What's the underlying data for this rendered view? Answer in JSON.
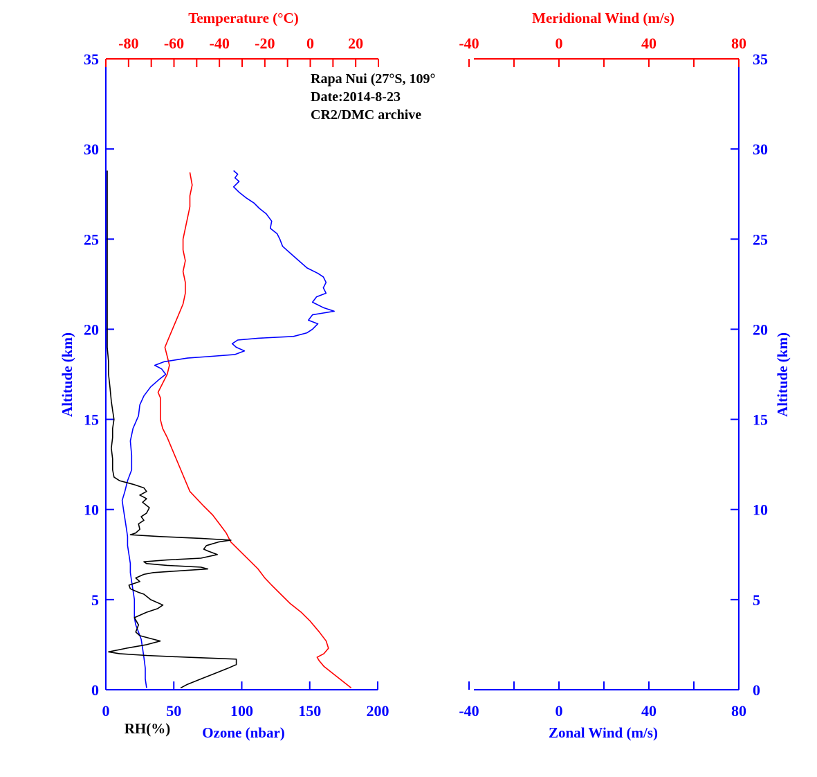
{
  "colors": {
    "blue": "#0000ff",
    "red": "#ff0000",
    "black": "#000000"
  },
  "annotation": [
    "Rapa Nui (27°S, 109°",
    "Date:2014-8-23",
    "CR2/DMC archive"
  ],
  "chart_data": [
    {
      "type": "line",
      "panel": "left",
      "ylabel": "Altitude (km)",
      "ylim": [
        0,
        35
      ],
      "yticks": [
        0,
        5,
        10,
        15,
        20,
        25,
        30,
        35
      ],
      "bottom_axis": {
        "xlabel": "Ozone (nbar)",
        "extra_label": "RH(%)",
        "xlim": [
          0,
          200
        ],
        "xticks": [
          0,
          50,
          100,
          150,
          200
        ]
      },
      "top_axis": {
        "xlabel": "Temperature (°C)",
        "xlim": [
          -90,
          30
        ],
        "xticks": [
          -80,
          -60,
          -40,
          -20,
          0,
          20
        ]
      },
      "series": [
        {
          "name": "Temperature (°C)",
          "axis": "top",
          "color": "#ff0000",
          "points": [
            [
              18,
              0.1
            ],
            [
              14,
              0.5
            ],
            [
              10,
              0.9
            ],
            [
              6,
              1.3
            ],
            [
              4,
              1.6
            ],
            [
              3,
              1.8
            ],
            [
              6,
              2.0
            ],
            [
              8,
              2.3
            ],
            [
              7,
              2.7
            ],
            [
              4,
              3.2
            ],
            [
              0,
              3.8
            ],
            [
              -4,
              4.3
            ],
            [
              -9,
              4.8
            ],
            [
              -13,
              5.3
            ],
            [
              -17,
              5.8
            ],
            [
              -20,
              6.2
            ],
            [
              -23,
              6.7
            ],
            [
              -27,
              7.2
            ],
            [
              -31,
              7.7
            ],
            [
              -35,
              8.2
            ],
            [
              -37,
              8.7
            ],
            [
              -40,
              9.2
            ],
            [
              -43,
              9.7
            ],
            [
              -47,
              10.2
            ],
            [
              -50,
              10.6
            ],
            [
              -53,
              11.0
            ],
            [
              -55,
              11.6
            ],
            [
              -57,
              12.2
            ],
            [
              -59,
              12.8
            ],
            [
              -61,
              13.4
            ],
            [
              -63,
              14.0
            ],
            [
              -65,
              14.5
            ],
            [
              -66,
              15.0
            ],
            [
              -66,
              15.6
            ],
            [
              -66,
              16.2
            ],
            [
              -67,
              16.5
            ],
            [
              -65,
              17.0
            ],
            [
              -63,
              17.5
            ],
            [
              -62,
              18.0
            ],
            [
              -63,
              18.5
            ],
            [
              -64,
              19.0
            ],
            [
              -62,
              19.6
            ],
            [
              -60,
              20.2
            ],
            [
              -58,
              20.8
            ],
            [
              -56,
              21.4
            ],
            [
              -55,
              22.0
            ],
            [
              -55,
              22.6
            ],
            [
              -56,
              23.2
            ],
            [
              -55,
              23.8
            ],
            [
              -56,
              24.4
            ],
            [
              -56,
              25.0
            ],
            [
              -55,
              25.6
            ],
            [
              -54,
              26.2
            ],
            [
              -53,
              26.8
            ],
            [
              -53,
              27.4
            ],
            [
              -52,
              28.0
            ],
            [
              -53,
              28.7
            ]
          ]
        },
        {
          "name": "Ozone (nbar)",
          "axis": "bottom",
          "color": "#0000ff",
          "points": [
            [
              30,
              0.1
            ],
            [
              29,
              0.6
            ],
            [
              29,
              1.2
            ],
            [
              28,
              1.8
            ],
            [
              27,
              2.3
            ],
            [
              26,
              2.8
            ],
            [
              24,
              3.2
            ],
            [
              22,
              3.6
            ],
            [
              21,
              4.0
            ],
            [
              21,
              4.5
            ],
            [
              21,
              5.0
            ],
            [
              20,
              5.5
            ],
            [
              19,
              6.0
            ],
            [
              18,
              6.5
            ],
            [
              18,
              7.0
            ],
            [
              17,
              7.5
            ],
            [
              16,
              8.0
            ],
            [
              16,
              8.5
            ],
            [
              15,
              9.0
            ],
            [
              14,
              9.5
            ],
            [
              13,
              10.0
            ],
            [
              12,
              10.5
            ],
            [
              14,
              11.0
            ],
            [
              16,
              11.6
            ],
            [
              19,
              12.2
            ],
            [
              19,
              13.0
            ],
            [
              18,
              13.8
            ],
            [
              20,
              14.5
            ],
            [
              24,
              15.2
            ],
            [
              25,
              15.8
            ],
            [
              28,
              16.3
            ],
            [
              33,
              16.8
            ],
            [
              39,
              17.2
            ],
            [
              44,
              17.5
            ],
            [
              41,
              17.8
            ],
            [
              36,
              18.0
            ],
            [
              43,
              18.2
            ],
            [
              60,
              18.4
            ],
            [
              78,
              18.5
            ],
            [
              95,
              18.6
            ],
            [
              102,
              18.8
            ],
            [
              96,
              19.0
            ],
            [
              93,
              19.2
            ],
            [
              97,
              19.4
            ],
            [
              112,
              19.5
            ],
            [
              138,
              19.6
            ],
            [
              148,
              19.8
            ],
            [
              152,
              20.0
            ],
            [
              156,
              20.3
            ],
            [
              149,
              20.5
            ],
            [
              152,
              20.8
            ],
            [
              160,
              20.9
            ],
            [
              168,
              21.0
            ],
            [
              160,
              21.2
            ],
            [
              152,
              21.5
            ],
            [
              155,
              21.8
            ],
            [
              162,
              22.0
            ],
            [
              160,
              22.3
            ],
            [
              162,
              22.6
            ],
            [
              160,
              22.9
            ],
            [
              156,
              23.1
            ],
            [
              148,
              23.4
            ],
            [
              142,
              23.8
            ],
            [
              136,
              24.2
            ],
            [
              130,
              24.6
            ],
            [
              128,
              25.0
            ],
            [
              126,
              25.3
            ],
            [
              121,
              25.6
            ],
            [
              122,
              26.0
            ],
            [
              118,
              26.4
            ],
            [
              113,
              26.7
            ],
            [
              109,
              27.0
            ],
            [
              103,
              27.3
            ],
            [
              98,
              27.6
            ],
            [
              94,
              27.9
            ],
            [
              98,
              28.2
            ],
            [
              95,
              28.4
            ],
            [
              97,
              28.6
            ],
            [
              94,
              28.8
            ]
          ]
        },
        {
          "name": "RH(%)",
          "axis": "bottom",
          "color": "#000000",
          "points": [
            [
              55,
              0.1
            ],
            [
              60,
              0.3
            ],
            [
              70,
              0.6
            ],
            [
              80,
              0.9
            ],
            [
              90,
              1.2
            ],
            [
              96,
              1.4
            ],
            [
              96,
              1.7
            ],
            [
              60,
              1.8
            ],
            [
              30,
              1.9
            ],
            [
              10,
              2.0
            ],
            [
              2,
              2.1
            ],
            [
              15,
              2.3
            ],
            [
              30,
              2.5
            ],
            [
              40,
              2.7
            ],
            [
              35,
              2.8
            ],
            [
              25,
              3.0
            ],
            [
              22,
              3.2
            ],
            [
              24,
              3.6
            ],
            [
              21,
              4.0
            ],
            [
              30,
              4.3
            ],
            [
              38,
              4.5
            ],
            [
              42,
              4.7
            ],
            [
              33,
              5.0
            ],
            [
              28,
              5.3
            ],
            [
              24,
              5.4
            ],
            [
              18,
              5.6
            ],
            [
              17,
              5.8
            ],
            [
              25,
              6.0
            ],
            [
              22,
              6.2
            ],
            [
              28,
              6.4
            ],
            [
              35,
              6.5
            ],
            [
              55,
              6.6
            ],
            [
              75,
              6.7
            ],
            [
              70,
              6.8
            ],
            [
              45,
              6.9
            ],
            [
              30,
              7.0
            ],
            [
              28,
              7.1
            ],
            [
              45,
              7.2
            ],
            [
              70,
              7.3
            ],
            [
              82,
              7.5
            ],
            [
              75,
              7.7
            ],
            [
              72,
              7.8
            ],
            [
              74,
              8.0
            ],
            [
              83,
              8.2
            ],
            [
              92,
              8.3
            ],
            [
              70,
              8.4
            ],
            [
              40,
              8.5
            ],
            [
              18,
              8.6
            ],
            [
              22,
              8.7
            ],
            [
              25,
              8.9
            ],
            [
              24,
              9.2
            ],
            [
              28,
              9.4
            ],
            [
              26,
              9.6
            ],
            [
              30,
              9.8
            ],
            [
              32,
              10.1
            ],
            [
              27,
              10.4
            ],
            [
              30,
              10.6
            ],
            [
              25,
              10.8
            ],
            [
              30,
              11.0
            ],
            [
              28,
              11.2
            ],
            [
              20,
              11.4
            ],
            [
              10,
              11.6
            ],
            [
              6,
              11.8
            ],
            [
              5,
              12.2
            ],
            [
              5,
              12.8
            ],
            [
              4,
              13.4
            ],
            [
              5,
              14.0
            ],
            [
              5,
              14.5
            ],
            [
              6,
              15.0
            ],
            [
              5,
              15.5
            ],
            [
              4,
              16.0
            ],
            [
              3,
              16.8
            ],
            [
              2,
              17.5
            ],
            [
              2,
              18.2
            ],
            [
              1,
              19.0
            ],
            [
              1,
              20.0
            ],
            [
              1,
              21.0
            ],
            [
              1,
              22.0
            ],
            [
              1,
              24.0
            ],
            [
              1,
              26.0
            ],
            [
              1,
              28.8
            ]
          ]
        }
      ]
    },
    {
      "type": "line",
      "panel": "right",
      "ylabel": "Altitude (km)",
      "ylim": [
        0,
        35
      ],
      "yticks": [
        0,
        5,
        10,
        15,
        20,
        25,
        30,
        35
      ],
      "bottom_axis": {
        "xlabel": "Zonal Wind (m/s)",
        "xlim": [
          -40,
          80
        ],
        "xticks": [
          -40,
          0,
          40,
          80
        ]
      },
      "top_axis": {
        "xlabel": "Meridional Wind (m/s)",
        "xlim": [
          -40,
          80
        ],
        "xticks": [
          -40,
          0,
          40,
          80
        ]
      },
      "series": []
    }
  ]
}
